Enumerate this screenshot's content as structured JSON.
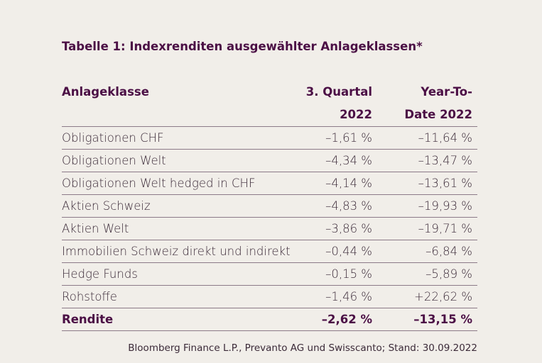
{
  "title": "Tabelle 1: Indexrenditen ausgewählter Anlageklassen*",
  "table": {
    "header": [
      [
        "Anlageklasse"
      ],
      [
        "3. Quartal",
        "2022"
      ],
      [
        "Year-To-",
        "Date 2022"
      ]
    ],
    "rows": [
      [
        "Obligationen CHF",
        "–1,61 %",
        "–11,64 %"
      ],
      [
        "Obligationen Welt",
        "–4,34 %",
        "–13,47 %"
      ],
      [
        "Obligationen Welt hedged in CHF",
        "–4,14 %",
        "–13,61 %"
      ],
      [
        "Aktien Schweiz",
        "–4,83 %",
        "–19,93 %"
      ],
      [
        "Aktien Welt",
        "–3,86 %",
        "–19,71 %"
      ],
      [
        "Immobilien Schweiz direkt und indirekt",
        "–0,44 %",
        "–6,84 %"
      ],
      [
        "Hedge Funds",
        "–0,15 %",
        "–5,89 %"
      ],
      [
        "Rohstoffe",
        "–1,46 %",
        "+22,62 %"
      ]
    ],
    "total": [
      "Rendite",
      "–2,62 %",
      "–13,15 %"
    ]
  },
  "source": "Bloomberg Finance L.P., Prevanto AG und Swisscanto; Stand: 30.09.2022"
}
